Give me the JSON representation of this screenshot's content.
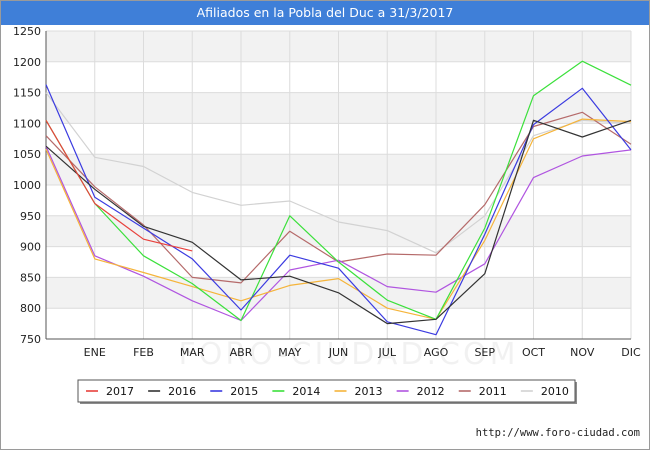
{
  "header": {
    "title": "Afiliados en la Pobla del Duc a 31/3/2017"
  },
  "footer": {
    "url": "http://www.foro-ciudad.com"
  },
  "watermark": {
    "text": "FORO-CIUDAD.COM"
  },
  "chart_data": {
    "type": "line",
    "title": "Afiliados en la Pobla del Duc a 31/3/2017",
    "xlabel": "",
    "ylabel": "",
    "categories": [
      "",
      "ENE",
      "FEB",
      "MAR",
      "ABR",
      "MAY",
      "JUN",
      "JUL",
      "AGO",
      "SEP",
      "OCT",
      "NOV",
      "DIC"
    ],
    "ylim": [
      750,
      1250
    ],
    "yticks": [
      750,
      800,
      850,
      900,
      950,
      1000,
      1050,
      1100,
      1150,
      1200,
      1250
    ],
    "grid": true,
    "legend_position": "bottom",
    "series": [
      {
        "name": "2017",
        "color": "#e8413c",
        "values": [
          1105,
          970,
          912,
          893,
          null,
          null,
          null,
          null,
          null,
          null,
          null,
          null,
          null
        ]
      },
      {
        "name": "2016",
        "color": "#333333",
        "values": [
          1063,
          993,
          933,
          907,
          846,
          852,
          825,
          775,
          782,
          856,
          1105,
          1078,
          1105
        ]
      },
      {
        "name": "2015",
        "color": "#3b3be0",
        "values": [
          1163,
          980,
          930,
          880,
          797,
          886,
          865,
          778,
          757,
          920,
          1098,
          1157,
          1057
        ]
      },
      {
        "name": "2014",
        "color": "#3be03b",
        "values": [
          1105,
          970,
          885,
          840,
          780,
          950,
          875,
          813,
          782,
          930,
          1145,
          1201,
          1162
        ]
      },
      {
        "name": "2013",
        "color": "#f5b43a",
        "values": [
          1058,
          880,
          858,
          835,
          812,
          837,
          848,
          800,
          782,
          910,
          1075,
          1107,
          1103
        ]
      },
      {
        "name": "2012",
        "color": "#b055e0",
        "values": [
          1063,
          885,
          852,
          812,
          780,
          862,
          878,
          835,
          826,
          872,
          1012,
          1047,
          1057
        ]
      },
      {
        "name": "2011",
        "color": "#b56a6a",
        "values": [
          1080,
          997,
          935,
          850,
          841,
          925,
          875,
          888,
          886,
          968,
          1095,
          1118,
          1066
        ]
      },
      {
        "name": "2010",
        "color": "#d2d2d2",
        "values": [
          1150,
          1045,
          1030,
          988,
          967,
          974,
          940,
          926,
          890,
          950,
          1080,
          1105,
          1100
        ]
      }
    ]
  }
}
